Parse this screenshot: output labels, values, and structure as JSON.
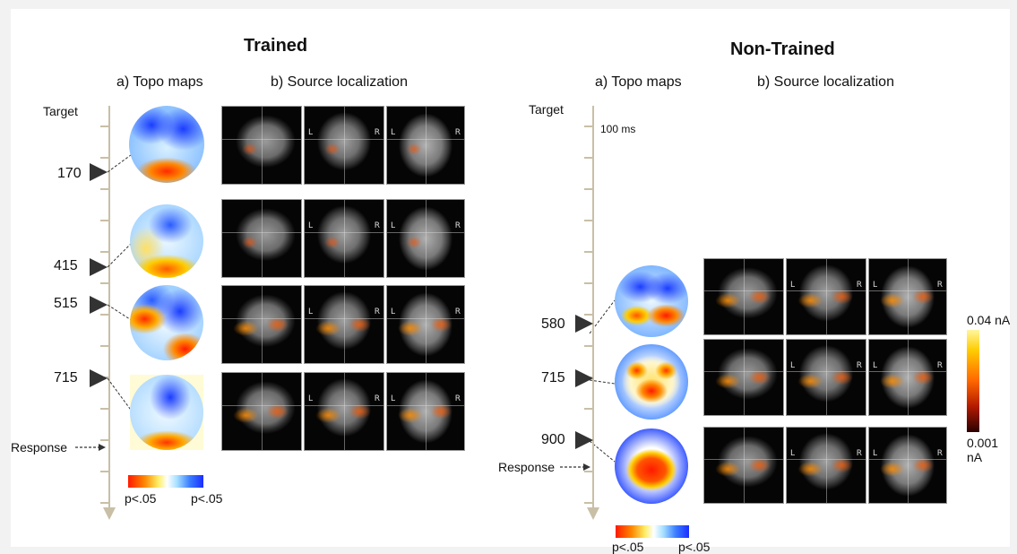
{
  "trained": {
    "title": "Trained",
    "topo_heading": "a) Topo maps",
    "source_heading": "b) Source localization",
    "target_label": "Target",
    "response_label": "Response",
    "times": [
      "170",
      "415",
      "515",
      "715"
    ],
    "scale_left": "p<.05",
    "scale_right": "p<.05"
  },
  "nontrained": {
    "title": "Non-Trained",
    "topo_heading": "a) Topo maps",
    "source_heading": "b) Source localization",
    "target_label": "Target",
    "ms_label": "100 ms",
    "response_label": "Response",
    "times": [
      "580",
      "715",
      "900"
    ],
    "scale_left": "p<.05",
    "scale_right": "p<.05"
  },
  "colorbar": {
    "max_label": "0.04 nA",
    "min_label": "0.001 nA"
  },
  "mri_labels": {
    "left": "L",
    "right": "R"
  }
}
